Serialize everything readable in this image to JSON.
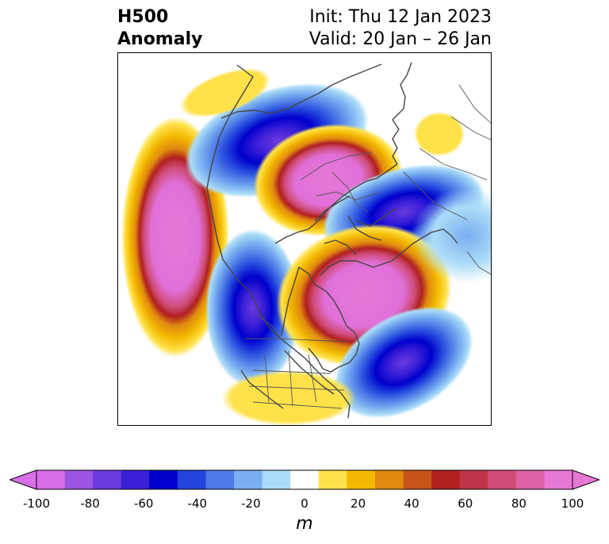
{
  "title": {
    "left_line1": "H500",
    "left_line2": "Anomaly",
    "right_line1": "Init: Thu 12 Jan 2023",
    "right_line2": "Valid: 20 Jan – 26 Jan"
  },
  "colorbar": {
    "units": "m",
    "tick_labels": [
      "-100",
      "-80",
      "-60",
      "-40",
      "-20",
      "0",
      "20",
      "40",
      "60",
      "80",
      "100"
    ],
    "levels": [
      -100,
      -90,
      -80,
      -70,
      -60,
      -50,
      -40,
      -30,
      -20,
      -10,
      10,
      20,
      30,
      40,
      50,
      60,
      70,
      80,
      90,
      100
    ],
    "bins": [
      "#d86ee8",
      "#9c55e0",
      "#6a3ade",
      "#3a1fd8",
      "#0000cc",
      "#2244dd",
      "#4c7ae6",
      "#79aef0",
      "#acdcf8",
      "#ffffff",
      "#ffe24a",
      "#f3b800",
      "#e08a10",
      "#c85418",
      "#b02020",
      "#c0344a",
      "#cf4c78",
      "#dc62a6",
      "#e878d6"
    ]
  },
  "map": {
    "projection": "north polar stereographic",
    "features": [
      "coastlines",
      "country borders",
      "US state borders"
    ]
  }
}
